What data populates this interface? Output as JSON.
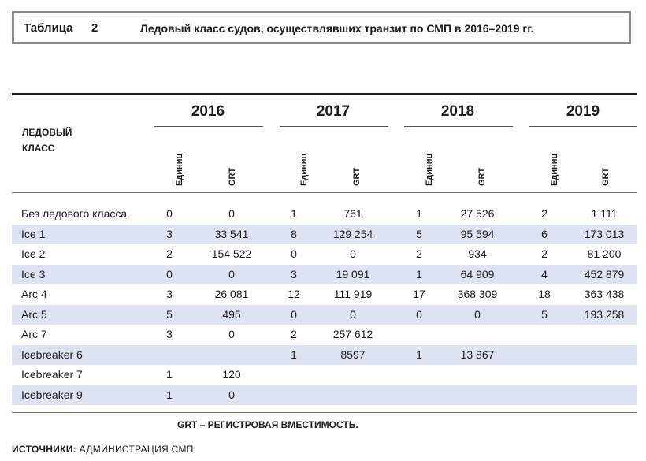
{
  "title": {
    "label": "Таблица",
    "number": "2",
    "text": "Ледовый класс судов, осуществлявших транзит по СМП в 2016–2019 гг."
  },
  "header": {
    "class_label_line1": "Ледовый",
    "class_label_line2": "класс",
    "years": [
      "2016",
      "2017",
      "2018",
      "2019"
    ],
    "units_label": "Единиц",
    "grt_label": "GRT"
  },
  "rows": [
    {
      "label": "Без ледового класса",
      "v": [
        "0",
        "0",
        "1",
        "761",
        "1",
        "27 526",
        "2",
        "1 111"
      ]
    },
    {
      "label": "Ice 1",
      "v": [
        "3",
        "33 541",
        "8",
        "129 254",
        "5",
        "95 594",
        "6",
        "173 013"
      ]
    },
    {
      "label": "Ice 2",
      "v": [
        "2",
        "154 522",
        "0",
        "0",
        "2",
        "934",
        "2",
        "81 200"
      ]
    },
    {
      "label": "Ice 3",
      "v": [
        "0",
        "0",
        "3",
        "19 091",
        "1",
        "64 909",
        "4",
        "452 879"
      ]
    },
    {
      "label": "Arc 4",
      "v": [
        "3",
        "26 081",
        "12",
        "111 919",
        "17",
        "368 309",
        "18",
        "363 438"
      ]
    },
    {
      "label": "Arc 5",
      "v": [
        "5",
        "495",
        "0",
        "0",
        "0",
        "0",
        "5",
        "193 258"
      ]
    },
    {
      "label": "Arc 7",
      "v": [
        "3",
        "0",
        "2",
        "257 612",
        "",
        "",
        "",
        ""
      ]
    },
    {
      "label": "Icebreaker 6",
      "v": [
        "",
        "",
        "1",
        "8597",
        "1",
        "13 867",
        "",
        ""
      ]
    },
    {
      "label": "Icebreaker 7",
      "v": [
        "1",
        "120",
        "",
        "",
        "",
        "",
        "",
        ""
      ]
    },
    {
      "label": "Icebreaker 9",
      "v": [
        "1",
        "0",
        "",
        "",
        "",
        "",
        "",
        ""
      ]
    }
  ],
  "footnote": "GRT – РЕГИСТРОВАЯ ВМЕСТИМОСТЬ.",
  "source": {
    "label": "ИСТОЧНИКИ:",
    "text": " АДМИНИСТРАЦИЯ СМП."
  },
  "colors": {
    "alt_row": "#dde3f3",
    "frame": "#8a8a8a"
  }
}
